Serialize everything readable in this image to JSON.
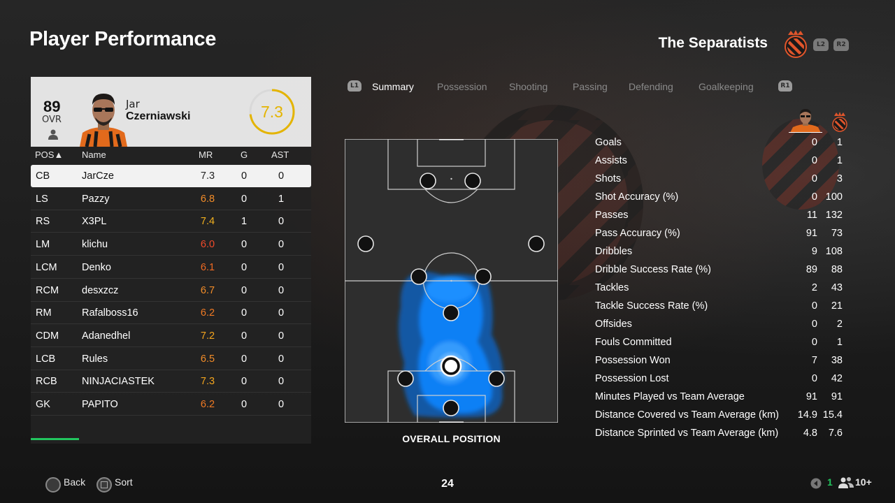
{
  "page_title": "Player Performance",
  "team": {
    "name": "The Separatists",
    "btn_l2": "L2",
    "btn_r2": "R2"
  },
  "player": {
    "ovr": "89",
    "ovr_label": "OVR",
    "first_name": "Jar",
    "last_name": "Czerniawski",
    "match_rating": "7.3",
    "match_rating_fraction": 0.73
  },
  "table": {
    "headers": {
      "pos": "POS▲",
      "name": "Name",
      "mr": "MR",
      "g": "G",
      "ast": "AST"
    },
    "rows": [
      {
        "pos": "CB",
        "name": "JarCze",
        "mr": "7.3",
        "g": "0",
        "ast": "0",
        "mr_color": "#222222",
        "selected": true
      },
      {
        "pos": "LS",
        "name": "Pazzy",
        "mr": "6.8",
        "g": "0",
        "ast": "1",
        "mr_color": "#f28c28"
      },
      {
        "pos": "RS",
        "name": "X3PL",
        "mr": "7.4",
        "g": "1",
        "ast": "0",
        "mr_color": "#f2b01e"
      },
      {
        "pos": "LM",
        "name": "klichu",
        "mr": "6.0",
        "g": "0",
        "ast": "0",
        "mr_color": "#f04a2a"
      },
      {
        "pos": "LCM",
        "name": "Denko",
        "mr": "6.1",
        "g": "0",
        "ast": "0",
        "mr_color": "#f06a22"
      },
      {
        "pos": "RCM",
        "name": "desxzcz",
        "mr": "6.7",
        "g": "0",
        "ast": "0",
        "mr_color": "#f28c28"
      },
      {
        "pos": "RM",
        "name": "Rafalboss16",
        "mr": "6.2",
        "g": "0",
        "ast": "0",
        "mr_color": "#f07a24"
      },
      {
        "pos": "CDM",
        "name": "Adanedhel",
        "mr": "7.2",
        "g": "0",
        "ast": "0",
        "mr_color": "#f2a41e"
      },
      {
        "pos": "LCB",
        "name": "Rules",
        "mr": "6.5",
        "g": "0",
        "ast": "0",
        "mr_color": "#f28c28"
      },
      {
        "pos": "RCB",
        "name": "NINJACIASTEK",
        "mr": "7.3",
        "g": "0",
        "ast": "0",
        "mr_color": "#f2a41e"
      },
      {
        "pos": "GK",
        "name": "PAPITO",
        "mr": "6.2",
        "g": "0",
        "ast": "0",
        "mr_color": "#f07a24"
      }
    ]
  },
  "tabs": {
    "l1": "L1",
    "r1": "R1",
    "items": [
      "Summary",
      "Possession",
      "Shooting",
      "Passing",
      "Defending",
      "Goalkeeping"
    ],
    "active": "Summary"
  },
  "pitch": {
    "caption": "OVERALL POSITION"
  },
  "stats": [
    {
      "label": "Goals",
      "player": "0",
      "team": "1"
    },
    {
      "label": "Assists",
      "player": "0",
      "team": "1"
    },
    {
      "label": "Shots",
      "player": "0",
      "team": "3"
    },
    {
      "label": "Shot Accuracy (%)",
      "player": "0",
      "team": "100"
    },
    {
      "label": "Passes",
      "player": "11",
      "team": "132"
    },
    {
      "label": "Pass Accuracy (%)",
      "player": "91",
      "team": "73"
    },
    {
      "label": "Dribbles",
      "player": "9",
      "team": "108"
    },
    {
      "label": "Dribble Success Rate (%)",
      "player": "89",
      "team": "88"
    },
    {
      "label": "Tackles",
      "player": "2",
      "team": "43"
    },
    {
      "label": "Tackle Success Rate (%)",
      "player": "0",
      "team": "21"
    },
    {
      "label": "Offsides",
      "player": "0",
      "team": "2"
    },
    {
      "label": "Fouls Committed",
      "player": "0",
      "team": "1"
    },
    {
      "label": "Possession Won",
      "player": "7",
      "team": "38"
    },
    {
      "label": "Possession Lost",
      "player": "0",
      "team": "42"
    },
    {
      "label": "Minutes Played vs Team Average",
      "player": "91",
      "team": "91"
    },
    {
      "label": "Distance Covered vs Team Average (km)",
      "player": "14.9",
      "team": "15.4"
    },
    {
      "label": "Distance Sprinted vs Team Average (km)",
      "player": "4.8",
      "team": "7.6"
    }
  ],
  "footer": {
    "back": "Back",
    "sort": "Sort",
    "page": "24",
    "party_count": "1",
    "online": "10+"
  },
  "colors": {
    "accent_green": "#22c55e",
    "heatmap_blue": "#0a84ff",
    "rating_yellow": "#e4b400"
  }
}
